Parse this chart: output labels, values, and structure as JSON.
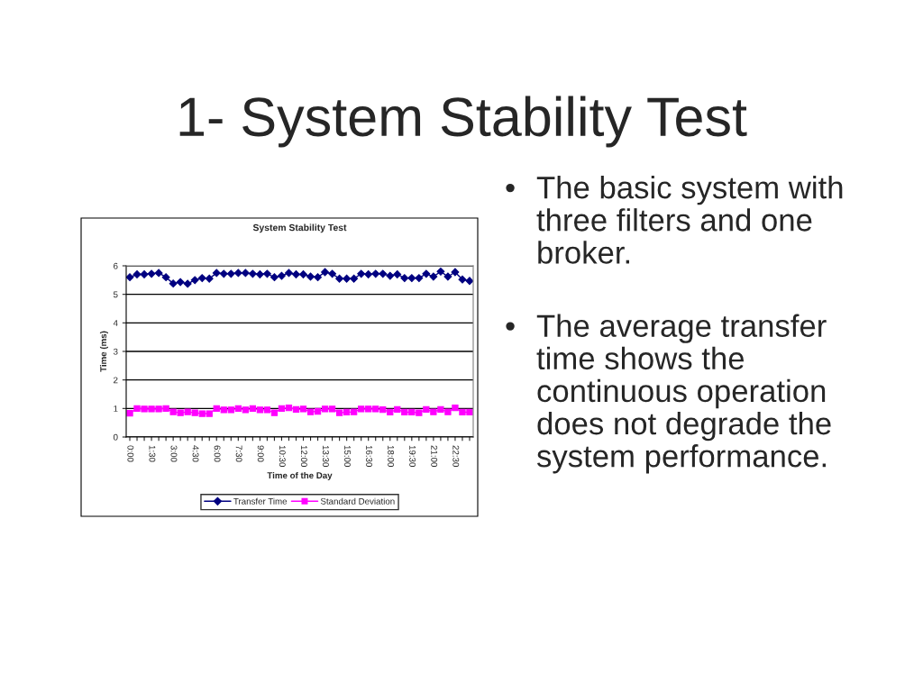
{
  "chart_data": {
    "type": "line",
    "title": "System Stability Test",
    "xlabel": "Time of the Day",
    "ylabel": "Time (ms)",
    "categories": [
      "0:00",
      null,
      null,
      "1:30",
      null,
      null,
      "3:00",
      null,
      null,
      "4:30",
      null,
      null,
      "6:00",
      null,
      null,
      "7:30",
      null,
      null,
      "9:00",
      null,
      null,
      "10:30",
      null,
      null,
      "12:00",
      null,
      null,
      "13:30",
      null,
      null,
      "15:00",
      null,
      null,
      "16:30",
      null,
      null,
      "18:00",
      null,
      null,
      "19:30",
      null,
      null,
      "21:00",
      null,
      null,
      "22:30",
      null,
      null
    ],
    "series": [
      {
        "name": "Transfer Time",
        "color": "#000080",
        "marker": "diamond",
        "values": [
          5.6,
          5.7,
          5.7,
          5.72,
          5.75,
          5.6,
          5.38,
          5.43,
          5.37,
          5.5,
          5.57,
          5.55,
          5.75,
          5.72,
          5.72,
          5.75,
          5.75,
          5.72,
          5.7,
          5.72,
          5.6,
          5.65,
          5.75,
          5.7,
          5.7,
          5.62,
          5.6,
          5.78,
          5.72,
          5.55,
          5.55,
          5.55,
          5.72,
          5.7,
          5.72,
          5.72,
          5.65,
          5.7,
          5.57,
          5.57,
          5.57,
          5.72,
          5.62,
          5.8,
          5.62,
          5.78,
          5.52,
          5.47
        ]
      },
      {
        "name": "Standard Deviation",
        "color": "#ff00ff",
        "marker": "square",
        "values": [
          0.83,
          1.0,
          0.98,
          0.98,
          0.98,
          1.0,
          0.88,
          0.85,
          0.88,
          0.85,
          0.82,
          0.82,
          1.0,
          0.95,
          0.95,
          1.0,
          0.95,
          1.0,
          0.95,
          0.95,
          0.85,
          1.0,
          1.02,
          0.97,
          0.98,
          0.88,
          0.9,
          0.98,
          0.98,
          0.85,
          0.87,
          0.88,
          0.98,
          0.98,
          0.98,
          0.96,
          0.87,
          0.97,
          0.87,
          0.87,
          0.85,
          0.97,
          0.88,
          0.97,
          0.88,
          1.02,
          0.87,
          0.87
        ]
      }
    ],
    "ylim": [
      0,
      6
    ],
    "yticks": [
      0,
      1,
      2,
      3,
      4,
      5,
      6
    ],
    "grid": "y",
    "legend": "bottom",
    "annotations": [
      "1- System Stability Test",
      "•",
      "The basic system with\nthree filters and one\nbroker.",
      "•",
      "The average transfer\ntime shows the\ncontinuous operation\ndoes not degrade the\nsystem performance."
    ]
  }
}
